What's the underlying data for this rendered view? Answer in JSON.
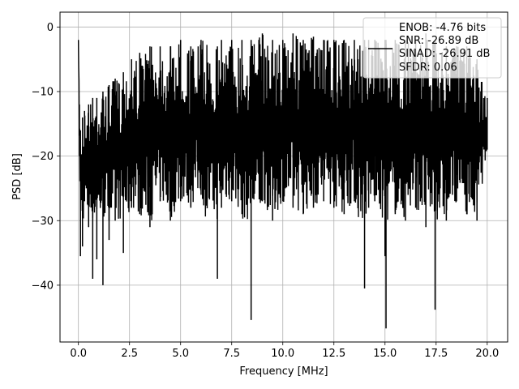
{
  "chart_data": {
    "type": "line",
    "xlabel": "Frequency [MHz]",
    "ylabel": "PSD [dB]",
    "xlim": [
      -0.9,
      21.0
    ],
    "ylim": [
      -48.8,
      2.3
    ],
    "xticks": [
      0.0,
      2.5,
      5.0,
      7.5,
      10.0,
      12.5,
      15.0,
      17.5,
      20.0
    ],
    "xtick_labels": [
      "0.0",
      "2.5",
      "5.0",
      "7.5",
      "10.0",
      "12.5",
      "15.0",
      "17.5",
      "20.0"
    ],
    "yticks": [
      0,
      -10,
      -20,
      -30,
      -40
    ],
    "ytick_labels": [
      "0",
      "−10",
      "−20",
      "−30",
      "−40"
    ],
    "grid": true,
    "legend_position": "top-right",
    "series": [
      {
        "color": "#000000",
        "x": [
          0.0,
          0.05,
          0.1,
          0.2,
          0.3,
          0.5,
          0.7,
          0.9,
          1.2,
          1.5,
          1.8,
          2.2,
          2.6,
          3.0,
          3.5,
          4.0,
          4.5,
          5.0,
          5.5,
          6.0,
          6.8,
          7.0,
          7.5,
          8.0,
          8.45,
          9.0,
          9.5,
          10.0,
          10.5,
          11.0,
          11.5,
          12.0,
          12.5,
          13.0,
          13.5,
          14.0,
          14.2,
          14.5,
          15.0,
          15.05,
          15.5,
          16.0,
          16.5,
          17.0,
          17.45,
          18.0,
          18.5,
          19.0,
          19.5,
          20.0
        ],
        "values": [
          -2.0,
          -20.0,
          -35.5,
          -34.0,
          -27.0,
          -31.0,
          -39.0,
          -36.0,
          -40.0,
          -33.0,
          -30.0,
          -35.0,
          -28.0,
          -29.0,
          -31.0,
          -27.0,
          -30.0,
          -27.0,
          -28.0,
          -26.0,
          -39.0,
          -28.0,
          -27.0,
          -29.0,
          -45.4,
          -27.0,
          -30.0,
          -27.0,
          -28.0,
          -29.0,
          -28.0,
          -27.0,
          -28.0,
          -29.0,
          -27.0,
          -40.5,
          -28.0,
          -27.0,
          -35.5,
          -46.7,
          -29.0,
          -30.0,
          -28.0,
          -31.0,
          -43.8,
          -30.0,
          -27.0,
          -29.0,
          -30.0,
          -19.0
        ],
        "envelope_top": [
          -2.0,
          -12.0,
          -16.0,
          -14.0,
          -13.0,
          -12.0,
          -11.0,
          -11.0,
          -10.0,
          -9.0,
          -8.0,
          -7.0,
          -5.0,
          -4.0,
          -3.0,
          -3.0,
          -3.0,
          -2.0,
          -3.0,
          -2.0,
          -3.0,
          -2.0,
          -2.0,
          -2.0,
          -2.0,
          -1.0,
          -2.0,
          -2.0,
          -1.0,
          -2.0,
          -1.5,
          -2.0,
          -2.0,
          -2.0,
          -2.0,
          -2.0,
          -2.0,
          -2.0,
          -2.0,
          -2.0,
          -2.0,
          -2.0,
          -2.0,
          -1.0,
          -2.0,
          -3.0,
          -3.0,
          -3.0,
          -5.0,
          -11.0
        ]
      }
    ],
    "legend": {
      "text_lines": [
        "ENOB: -4.76 bits",
        "SNR: -26.89 dB",
        "SINAD: -26.91 dB",
        "SFDR: 0.06"
      ]
    }
  }
}
